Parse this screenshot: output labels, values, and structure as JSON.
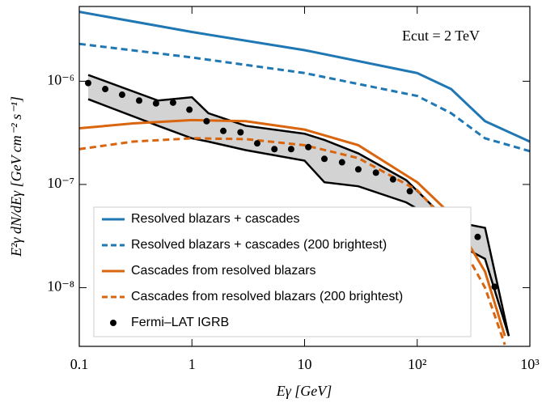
{
  "chart_data": {
    "type": "line",
    "xlabel": "Eγ [GeV]",
    "ylabel": "E²γ dN/dEγ  [GeV cm⁻² s⁻¹]",
    "annotation": "Ecut = 2 TeV",
    "xscale": "log",
    "yscale": "log",
    "xlim": [
      0.1,
      1000
    ],
    "ylim": [
      2.7e-09,
      5.3e-06
    ],
    "xticks": [
      0.1,
      1,
      10,
      {
        "value": 100,
        "label": "10²"
      },
      {
        "value": 1000,
        "label": "10³"
      }
    ],
    "yticks": [
      {
        "value": 1e-08,
        "label": "10⁻⁸"
      },
      {
        "value": 1e-07,
        "label": "10⁻⁷"
      },
      {
        "value": 1e-06,
        "label": "10⁻⁶"
      }
    ],
    "legend": "lower left",
    "band": {
      "color": "#d3d3d3",
      "x": [
        0.12,
        0.5,
        1,
        1.4,
        3,
        10,
        15,
        30,
        80,
        150,
        250,
        400,
        650
      ],
      "upper": [
        1.15e-06,
        6.5e-07,
        7e-07,
        4.9e-07,
        3.7e-07,
        3.1e-07,
        2.7e-07,
        2e-07,
        1.1e-07,
        5.6e-08,
        4.2e-08,
        3.8e-08,
        3.4e-09
      ],
      "lower": [
        6.7e-07,
        3.7e-07,
        2.8e-07,
        2.6e-07,
        2.15e-07,
        1.7e-07,
        1.05e-07,
        9.6e-08,
        6.7e-08,
        4.5e-08,
        2.5e-08,
        1.9e-08,
        3.4e-09
      ]
    },
    "series": [
      {
        "name": "Resolved blazars + cascades",
        "color": "#1f77b4",
        "dash": false,
        "x": [
          0.1,
          1,
          10,
          100,
          200,
          400,
          1000
        ],
        "values": [
          4.7e-06,
          3e-06,
          2e-06,
          1.2e-06,
          8.4e-07,
          4.1e-07,
          2.6e-07
        ]
      },
      {
        "name": "Resolved blazars + cascades (200 brightest)",
        "color": "#1f77b4",
        "dash": true,
        "x": [
          0.1,
          1,
          10,
          100,
          200,
          400,
          1000
        ],
        "values": [
          2.3e-06,
          1.7e-06,
          1.2e-06,
          7.2e-07,
          4.9e-07,
          2.8e-07,
          2.1e-07
        ]
      },
      {
        "name": "Cascades from resolved blazars",
        "color": "#d9650f",
        "dash": false,
        "x": [
          0.1,
          0.3,
          1,
          3,
          10,
          30,
          100,
          200,
          400,
          600
        ],
        "values": [
          3.5e-07,
          3.9e-07,
          4.2e-07,
          4.1e-07,
          3.4e-07,
          2.4e-07,
          1.05e-07,
          5.1e-08,
          1.43e-08,
          3.4e-09
        ]
      },
      {
        "name": "Cascades from resolved blazars (200 brightest)",
        "color": "#d9650f",
        "dash": true,
        "x": [
          0.1,
          0.3,
          1,
          3,
          10,
          30,
          100,
          200,
          400,
          600
        ],
        "values": [
          2.2e-07,
          2.6e-07,
          2.8e-07,
          2.75e-07,
          2.4e-07,
          1.8e-07,
          8.8e-08,
          3.9e-08,
          1e-08,
          2.8e-09
        ]
      },
      {
        "name": "Fermi–LAT IGRB",
        "color": "#000000",
        "style": "points",
        "x": [
          0.12,
          0.17,
          0.24,
          0.34,
          0.48,
          0.68,
          0.95,
          1.35,
          1.9,
          2.7,
          3.8,
          5.4,
          7.6,
          10.8,
          15,
          21.5,
          30,
          43,
          61,
          86,
          122,
          172,
          243,
          344,
          487
        ],
        "values": [
          9.6e-07,
          8.4e-07,
          7.4e-07,
          6.5e-07,
          6.1e-07,
          6.2e-07,
          5.3e-07,
          4.1e-07,
          3.3e-07,
          3.2e-07,
          2.5e-07,
          2.2e-07,
          2.2e-07,
          2.3e-07,
          1.77e-07,
          1.64e-07,
          1.4e-07,
          1.3e-07,
          1.12e-07,
          8.6e-08,
          5.4e-08,
          4.8e-08,
          3.3e-08,
          3.1e-08,
          1.02e-08
        ]
      }
    ]
  }
}
